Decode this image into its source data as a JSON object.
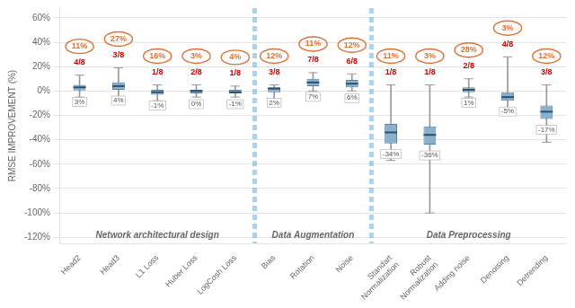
{
  "chart_data": {
    "type": "box",
    "categories": [
      "Head2",
      "Head3",
      "L1 Loss",
      "Huber Loss",
      "LogCosh Loss",
      "Bias",
      "Rotation",
      "Noise",
      "Standart\nNormalization",
      "Robust\nNormalization",
      "Adding noise",
      "Denoising",
      "Detrending"
    ],
    "median": [
      3,
      4,
      -1,
      0,
      -1,
      2,
      7,
      6,
      -34,
      -36,
      1,
      -5,
      -17
    ],
    "median_labels": [
      "3%",
      "4%",
      "-1%",
      "0%",
      "-1%",
      "2%",
      "7%",
      "6%",
      "-34%",
      "-36%",
      "1%",
      "-5%",
      "-17%"
    ],
    "q1": [
      0,
      1,
      -3,
      -2,
      -2,
      -1,
      4,
      3,
      -43,
      -44,
      -1,
      -8,
      -23
    ],
    "q3": [
      5,
      7,
      1,
      1,
      1,
      3,
      10,
      9,
      -27,
      -29,
      3,
      -1,
      -12
    ],
    "whisker_low": [
      -5,
      -8,
      -8,
      -5,
      -5,
      -8,
      0,
      0,
      -57,
      -100,
      -5,
      -15,
      -42
    ],
    "whisker_high": [
      13,
      19,
      5,
      5,
      4,
      5,
      15,
      14,
      5,
      5,
      10,
      28,
      5
    ],
    "pct": {
      "values": [
        11,
        27,
        16,
        3,
        4,
        12,
        11,
        12,
        11,
        3,
        28,
        3,
        12
      ],
      "value_labels": [
        "11%",
        "27%",
        "16%",
        "3%",
        "4%",
        "12%",
        "11%",
        "12%",
        "11%",
        "3%",
        "28%",
        "3%",
        "12%"
      ],
      "color": "#E07030"
    },
    "fractions": {
      "labels": [
        "4/8",
        "3/8",
        "1/8",
        "2/8",
        "1/8",
        "3/8",
        "7/8",
        "6/8",
        "1/8",
        "1/8",
        "2/8",
        "4/8",
        "3/8"
      ],
      "color": "#cc0000"
    },
    "sections": [
      {
        "label": "Network architectural design",
        "start": "Head2",
        "end": "LogCosh Loss"
      },
      {
        "label": "Data Augmentation",
        "start": "Bias",
        "end": "Noise"
      },
      {
        "label": "Data Preprocessing",
        "start": "Standart\nNormalization",
        "end": "Detrending"
      }
    ],
    "color": "#8ab0cc",
    "ylabel": "RMSE IMPROVEMENT (%)",
    "ylim": [
      -125,
      68
    ],
    "yticks": [
      {
        "value": 60,
        "label": "60%"
      },
      {
        "value": 40,
        "label": "40%"
      },
      {
        "value": 20,
        "label": "20%"
      },
      {
        "value": 0,
        "label": "0%"
      },
      {
        "value": -20,
        "label": "-20%"
      },
      {
        "value": -40,
        "label": "-40%"
      },
      {
        "value": -60,
        "label": "-60%"
      },
      {
        "value": -80,
        "label": "-80%"
      },
      {
        "value": -100,
        "label": "-100%"
      },
      {
        "value": -120,
        "label": "-120%"
      }
    ],
    "grid": true
  }
}
